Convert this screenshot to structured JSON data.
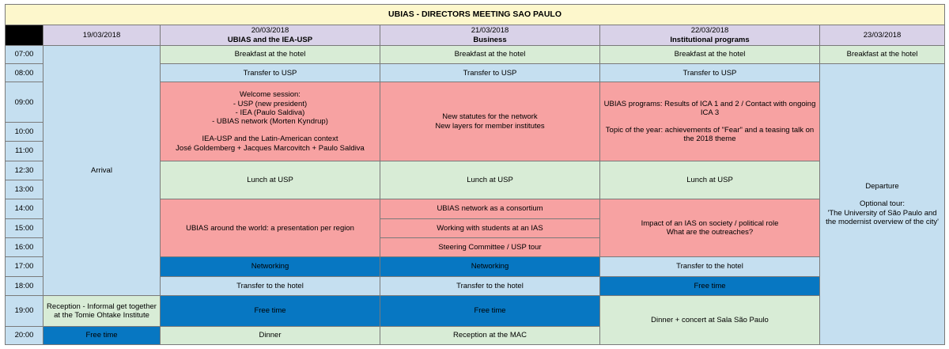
{
  "title": "UBIAS - DIRECTORS MEETING SAO PAULO",
  "days": [
    {
      "date": "19/03/2018",
      "theme": ""
    },
    {
      "date": "20/03/2018",
      "theme": "UBIAS and the IEA-USP"
    },
    {
      "date": "21/03/2018",
      "theme": "Business"
    },
    {
      "date": "22/03/2018",
      "theme": "Institutional programs"
    },
    {
      "date": "23/03/2018",
      "theme": ""
    }
  ],
  "times": [
    "07:00",
    "08:00",
    "09:00",
    "10:00",
    "11:00",
    "12:30",
    "13:00",
    "14:00",
    "15:00",
    "16:00",
    "17:00",
    "18:00",
    "19:00",
    "20:00"
  ],
  "events": {
    "arrival": "Arrival",
    "breakfast": "Breakfast at the hotel",
    "transfer_usp": "Transfer to USP",
    "welcome": "Welcome session:\n- USP (new president)\n- IEA (Paulo Saldiva)\n- UBIAS network (Morten Kyndrup)\n\nIEA-USP and the Latin-American context\nJosé Goldemberg + Jacques Marcovitch + Paulo Saldiva",
    "statutes": "New statutes for the network\nNew layers for member institutes",
    "programs": "UBIAS programs: Results of ICA 1 and 2 / Contact with ongoing ICA 3\n\nTopic of the year: achievements of \"Fear\" and a teasing talk on the 2018 theme",
    "departure": "Departure\n\nOptional tour:\n'The University of São Paulo and the modernist overview of the city'",
    "lunch": "Lunch at USP",
    "around_world": "UBIAS around the world: a presentation per region",
    "consortium": "UBIAS network as a consortium",
    "students": "Working with students at an IAS",
    "steering": "Steering Committee / USP tour",
    "impact": "Impact of an IAS on society / political role\nWhat are the outreaches?",
    "networking": "Networking",
    "transfer_hotel": "Transfer to the hotel",
    "free_time": "Free time",
    "reception_tomie": "Reception -  Informal get together at the Tomie Ohtake Institute",
    "dinner_concert": "Dinner + concert at Sala São Paulo",
    "dinner": "Dinner",
    "reception_mac": "Reception at the MAC"
  },
  "colors": {
    "title": "#fdf7cc",
    "day_header": "#d9d2e8",
    "transfer_blue": "#c5dff0",
    "meal_green": "#d8ecd6",
    "session_red": "#f7a2a2",
    "free_dark_blue": "#0777c2"
  }
}
